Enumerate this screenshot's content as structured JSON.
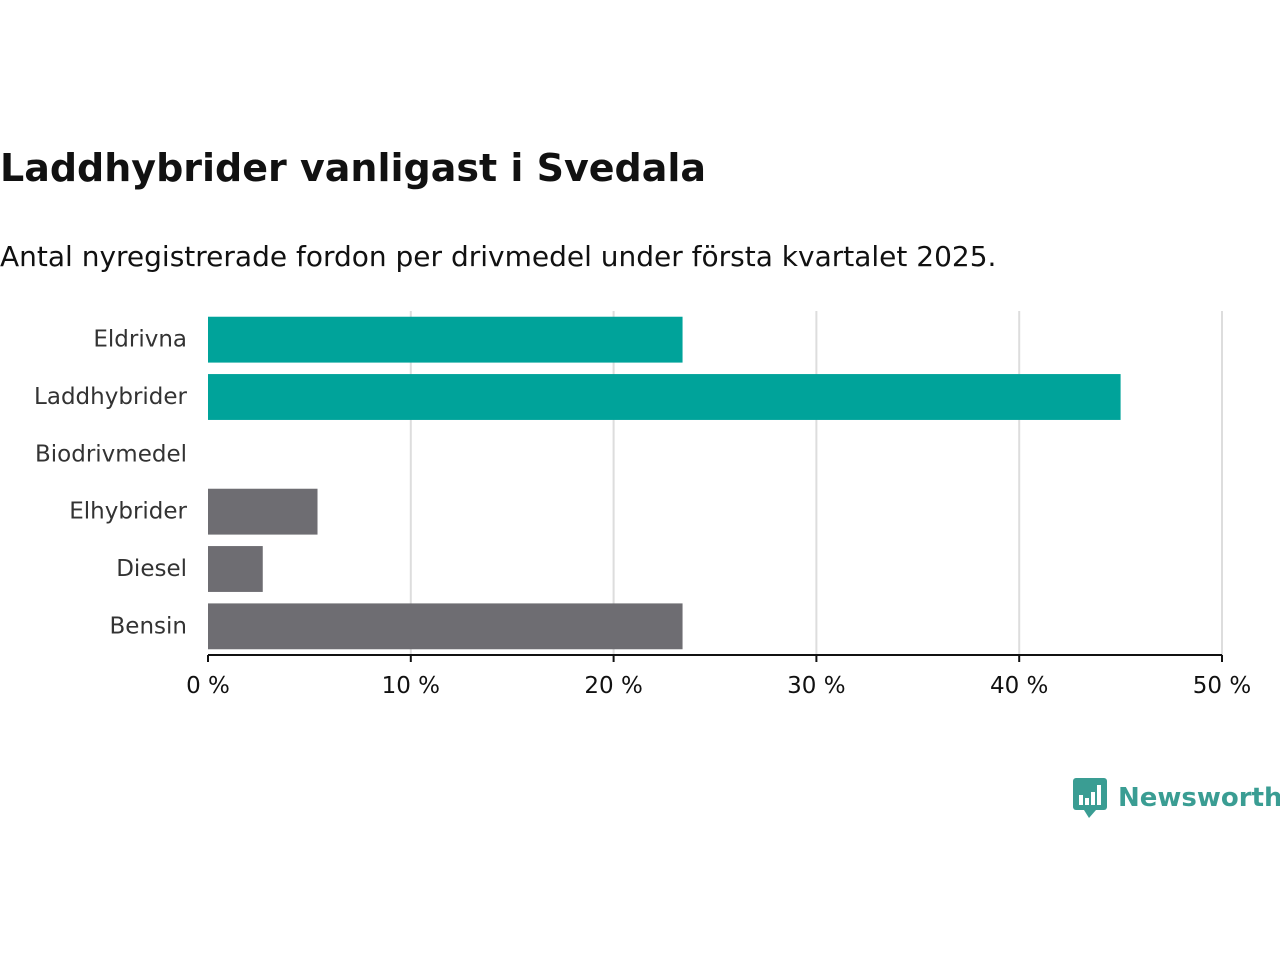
{
  "chart_data": {
    "type": "bar",
    "orientation": "horizontal",
    "title": "Laddhybrider vanligast i Svedala",
    "subtitle": "Antal nyregistrerade fordon per drivmedel under första kvartalet 2025.",
    "categories": [
      "Eldrivna",
      "Laddhybrider",
      "Biodrivmedel",
      "Elhybrider",
      "Diesel",
      "Bensin"
    ],
    "values": [
      23.4,
      45.0,
      0,
      5.4,
      2.7,
      23.4
    ],
    "value_unit": "%",
    "bar_colors": [
      "#00a39a",
      "#00a39a",
      "#6e6d72",
      "#6e6d72",
      "#6e6d72",
      "#6e6d72"
    ],
    "xlim": [
      0,
      50
    ],
    "x_ticks": [
      0,
      10,
      20,
      30,
      40,
      50
    ],
    "x_tick_labels": [
      "0 %",
      "10 %",
      "20 %",
      "30 %",
      "40 %",
      "50 %"
    ],
    "xlabel": "",
    "ylabel": "",
    "grid": "vertical",
    "legend": "none"
  },
  "brand": {
    "name": "Newsworthy",
    "icon": "bar-chart-speech-bubble-icon",
    "color": "#3a9d93"
  }
}
